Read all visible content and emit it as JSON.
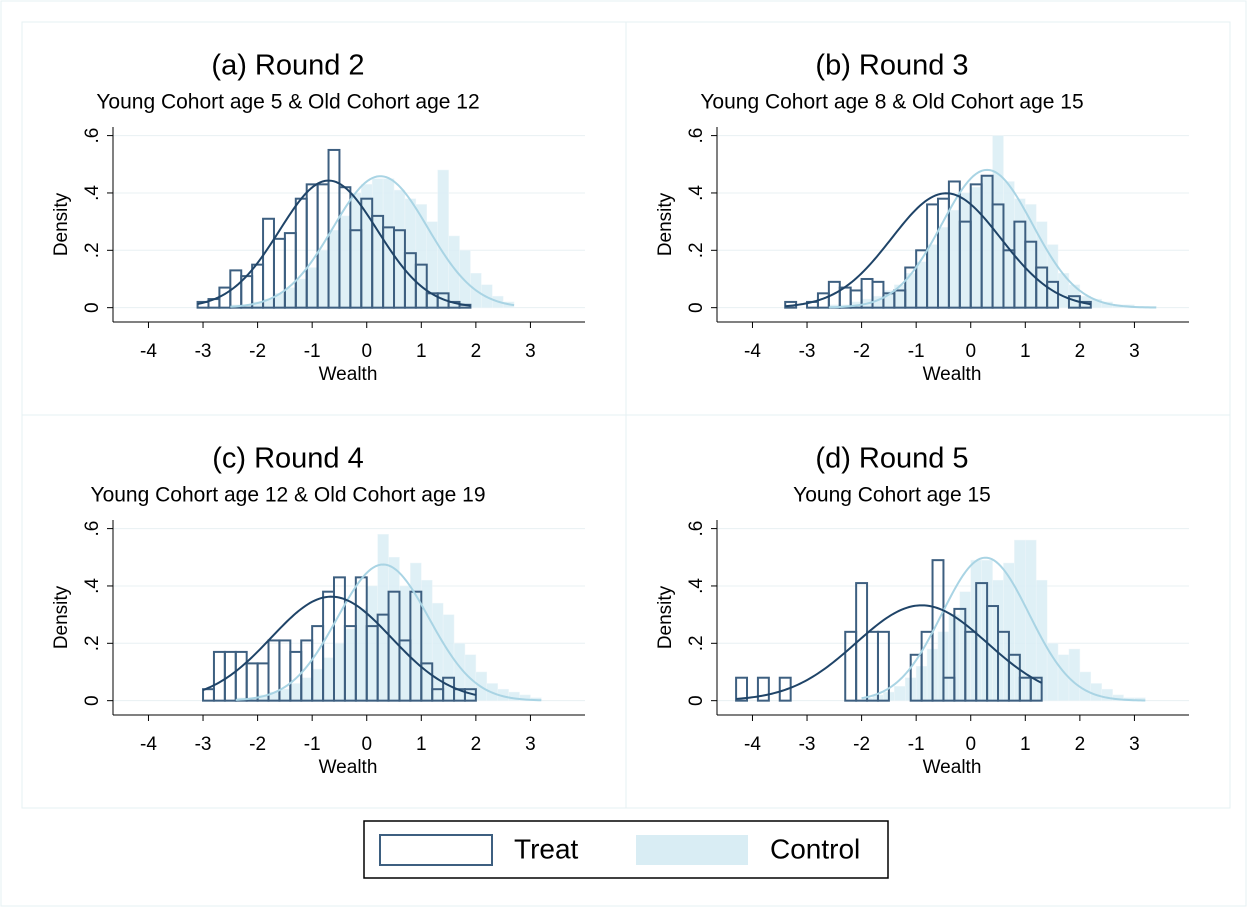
{
  "chart_data": [
    {
      "type": "histogram",
      "title": "(a) Round 2",
      "subtitle": "Young Cohort age 5 & Old Cohort age 12",
      "x_label": "Wealth",
      "y_label": "Density",
      "xlim": [
        -4.65,
        4
      ],
      "xticks": [
        -4,
        -3,
        -2,
        -1,
        0,
        1,
        2,
        3
      ],
      "ylim": [
        -0.05,
        0.63
      ],
      "yticks": [
        0,
        {
          "value": 0.2,
          "label": ".2"
        },
        {
          "value": 0.4,
          "label": ".4"
        },
        {
          "value": 0.6,
          "label": ".6"
        }
      ],
      "grid": true,
      "series": [
        {
          "name": "Treat",
          "color": "#3d5f80",
          "curve_color": "#1f4468",
          "fit": {
            "mean": -0.7,
            "sd": 0.9
          },
          "bins": [
            -3.1,
            -2.9,
            -2.7,
            -2.5,
            -2.3,
            -2.1,
            -1.9,
            -1.7,
            -1.5,
            -1.3,
            -1.1,
            -0.9,
            -0.7,
            -0.5,
            -0.3,
            -0.1,
            0.1,
            0.3,
            0.5,
            0.7,
            0.9,
            1.1,
            1.3,
            1.5,
            1.7,
            1.9
          ],
          "counts": [
            0.02,
            0.03,
            0.07,
            0.13,
            0.11,
            0.15,
            0.31,
            0.24,
            0.26,
            0.38,
            0.43,
            0.43,
            0.55,
            0.42,
            0.27,
            0.38,
            0.32,
            0.28,
            0.27,
            0.19,
            0.15,
            0.05,
            0.05,
            0.02,
            0.01
          ]
        },
        {
          "name": "Control",
          "color": "#d9edf4",
          "curve_color": "#a9d4e4",
          "fit": {
            "mean": 0.25,
            "sd": 0.87
          },
          "bins": [
            -2.5,
            -2.3,
            -2.1,
            -1.9,
            -1.7,
            -1.5,
            -1.3,
            -1.1,
            -0.9,
            -0.7,
            -0.5,
            -0.3,
            -0.1,
            0.1,
            0.3,
            0.5,
            0.7,
            0.9,
            1.1,
            1.3,
            1.5,
            1.7,
            1.9,
            2.1,
            2.3,
            2.5,
            2.7
          ],
          "counts": [
            0.01,
            0.01,
            0.02,
            0.03,
            0.05,
            0.07,
            0.1,
            0.14,
            0.2,
            0.27,
            0.32,
            0.4,
            0.43,
            0.45,
            0.45,
            0.41,
            0.38,
            0.36,
            0.3,
            0.48,
            0.25,
            0.2,
            0.12,
            0.08,
            0.04,
            0.02
          ]
        }
      ]
    },
    {
      "type": "histogram",
      "title": "(b) Round 3",
      "subtitle": "Young Cohort age 8 & Old Cohort age 15",
      "x_label": "Wealth",
      "y_label": "Density",
      "xlim": [
        -4.65,
        4
      ],
      "xticks": [
        -4,
        -3,
        -2,
        -1,
        0,
        1,
        2,
        3
      ],
      "ylim": [
        -0.05,
        0.63
      ],
      "yticks": [
        0,
        {
          "value": 0.2,
          "label": ".2"
        },
        {
          "value": 0.4,
          "label": ".4"
        },
        {
          "value": 0.6,
          "label": ".6"
        }
      ],
      "grid": true,
      "series": [
        {
          "name": "Treat",
          "color": "#3d5f80",
          "curve_color": "#1f4468",
          "fit": {
            "mean": -0.45,
            "sd": 1.0
          },
          "bins": [
            -3.4,
            -3.2,
            -3.0,
            -2.8,
            -2.6,
            -2.4,
            -2.2,
            -2.0,
            -1.8,
            -1.6,
            -1.4,
            -1.2,
            -1.0,
            -0.8,
            -0.6,
            -0.4,
            -0.2,
            0.0,
            0.2,
            0.4,
            0.6,
            0.8,
            1.0,
            1.2,
            1.4,
            1.6,
            1.8,
            2.0,
            2.2
          ],
          "counts": [
            0.02,
            0,
            0.02,
            0.05,
            0.09,
            0.07,
            0.06,
            0.1,
            0.09,
            0.05,
            0.06,
            0.14,
            0.2,
            0.36,
            0.38,
            0.44,
            0.3,
            0.43,
            0.46,
            0.36,
            0.2,
            0.3,
            0.23,
            0.14,
            0.09,
            0,
            0.04,
            0.02
          ]
        },
        {
          "name": "Control",
          "color": "#d9edf4",
          "curve_color": "#a9d4e4",
          "fit": {
            "mean": 0.3,
            "sd": 0.83
          },
          "bins": [
            -2.6,
            -2.4,
            -2.2,
            -2.0,
            -1.8,
            -1.6,
            -1.4,
            -1.2,
            -1.0,
            -0.8,
            -0.6,
            -0.4,
            -0.2,
            0.0,
            0.2,
            0.4,
            0.6,
            0.8,
            1.0,
            1.2,
            1.4,
            1.6,
            1.8,
            2.0,
            2.2,
            2.4,
            2.6,
            2.8,
            3.0,
            3.2,
            3.4
          ],
          "counts": [
            0.01,
            0.01,
            0.02,
            0.03,
            0.04,
            0.06,
            0.08,
            0.12,
            0.16,
            0.22,
            0.28,
            0.34,
            0.4,
            0.42,
            0.46,
            0.6,
            0.44,
            0.38,
            0.36,
            0.3,
            0.22,
            0.12,
            0.08,
            0.04,
            0.03,
            0.02,
            0.01,
            0.01,
            0.005,
            0.005
          ]
        }
      ]
    },
    {
      "type": "histogram",
      "title": "(c) Round 4",
      "subtitle": "Young Cohort age 12 & Old Cohort age 19",
      "x_label": "Wealth",
      "y_label": "Density",
      "xlim": [
        -4.65,
        4
      ],
      "xticks": [
        -4,
        -3,
        -2,
        -1,
        0,
        1,
        2,
        3
      ],
      "ylim": [
        -0.05,
        0.63
      ],
      "yticks": [
        0,
        {
          "value": 0.2,
          "label": ".2"
        },
        {
          "value": 0.4,
          "label": ".4"
        },
        {
          "value": 0.6,
          "label": ".6"
        }
      ],
      "grid": true,
      "series": [
        {
          "name": "Treat",
          "color": "#3d5f80",
          "curve_color": "#1f4468",
          "fit": {
            "mean": -0.65,
            "sd": 1.1
          },
          "bins": [
            -3.0,
            -2.8,
            -2.6,
            -2.4,
            -2.2,
            -2.0,
            -1.8,
            -1.6,
            -1.4,
            -1.2,
            -1.0,
            -0.8,
            -0.6,
            -0.4,
            -0.2,
            0.0,
            0.2,
            0.4,
            0.6,
            0.8,
            1.0,
            1.2,
            1.4,
            1.6,
            1.8,
            2.0
          ],
          "counts": [
            0.04,
            0.17,
            0.17,
            0.17,
            0.13,
            0.13,
            0.21,
            0.21,
            0.17,
            0.21,
            0.26,
            0.38,
            0.43,
            0.26,
            0.43,
            0.26,
            0.3,
            0.38,
            0.21,
            0.38,
            0.13,
            0.04,
            0.08,
            0.04,
            0.04
          ]
        },
        {
          "name": "Control",
          "color": "#d9edf4",
          "curve_color": "#a9d4e4",
          "fit": {
            "mean": 0.3,
            "sd": 0.84
          },
          "bins": [
            -2.4,
            -2.2,
            -2.0,
            -1.8,
            -1.6,
            -1.4,
            -1.2,
            -1.0,
            -0.8,
            -0.6,
            -0.4,
            -0.2,
            0.0,
            0.2,
            0.4,
            0.6,
            0.8,
            1.0,
            1.2,
            1.4,
            1.6,
            1.8,
            2.0,
            2.2,
            2.4,
            2.6,
            2.8,
            3.0,
            3.2
          ],
          "counts": [
            0.01,
            0.01,
            0.02,
            0.03,
            0.04,
            0.06,
            0.08,
            0.11,
            0.15,
            0.2,
            0.25,
            0.32,
            0.4,
            0.58,
            0.5,
            0.4,
            0.48,
            0.42,
            0.34,
            0.3,
            0.2,
            0.16,
            0.1,
            0.06,
            0.04,
            0.03,
            0.02,
            0.01
          ]
        }
      ]
    },
    {
      "type": "histogram",
      "title": "(d) Round 5",
      "subtitle": "Young Cohort age 15",
      "x_label": "Wealth",
      "y_label": "Density",
      "xlim": [
        -4.65,
        4
      ],
      "xticks": [
        -4,
        -3,
        -2,
        -1,
        0,
        1,
        2,
        3
      ],
      "ylim": [
        -0.05,
        0.63
      ],
      "yticks": [
        0,
        {
          "value": 0.2,
          "label": ".2"
        },
        {
          "value": 0.4,
          "label": ".4"
        },
        {
          "value": 0.6,
          "label": ".6"
        }
      ],
      "grid": true,
      "series": [
        {
          "name": "Treat",
          "color": "#3d5f80",
          "curve_color": "#1f4468",
          "fit": {
            "mean": -0.9,
            "sd": 1.2
          },
          "bins": [
            -4.3,
            -4.1,
            -3.9,
            -3.7,
            -3.5,
            -3.3,
            -3.1,
            -2.9,
            -2.7,
            -2.5,
            -2.3,
            -2.1,
            -1.9,
            -1.7,
            -1.5,
            -1.3,
            -1.1,
            -0.9,
            -0.7,
            -0.5,
            -0.3,
            -0.1,
            0.1,
            0.3,
            0.5,
            0.7,
            0.9,
            1.1,
            1.3
          ],
          "counts": [
            0.08,
            0,
            0.08,
            0,
            0.08,
            0,
            0,
            0,
            0,
            0,
            0.24,
            0.41,
            0.24,
            0.24,
            0,
            0,
            0.16,
            0.24,
            0.49,
            0.08,
            0.32,
            0.24,
            0.41,
            0.33,
            0.24,
            0.16,
            0.08,
            0.08
          ]
        },
        {
          "name": "Control",
          "color": "#d9edf4",
          "curve_color": "#a9d4e4",
          "fit": {
            "mean": 0.27,
            "sd": 0.8
          },
          "bins": [
            -2.0,
            -1.8,
            -1.6,
            -1.4,
            -1.2,
            -1.0,
            -0.8,
            -0.6,
            -0.4,
            -0.2,
            0.0,
            0.2,
            0.4,
            0.6,
            0.8,
            1.0,
            1.2,
            1.4,
            1.6,
            1.8,
            2.0,
            2.2,
            2.4,
            2.6,
            2.8,
            3.0,
            3.2
          ],
          "counts": [
            0.01,
            0.02,
            0.03,
            0.05,
            0.08,
            0.12,
            0.18,
            0.24,
            0.3,
            0.38,
            0.49,
            0.49,
            0.42,
            0.48,
            0.56,
            0.56,
            0.42,
            0.2,
            0.16,
            0.18,
            0.1,
            0.06,
            0.04,
            0.02,
            0.01,
            0.01
          ]
        }
      ]
    }
  ]
}
